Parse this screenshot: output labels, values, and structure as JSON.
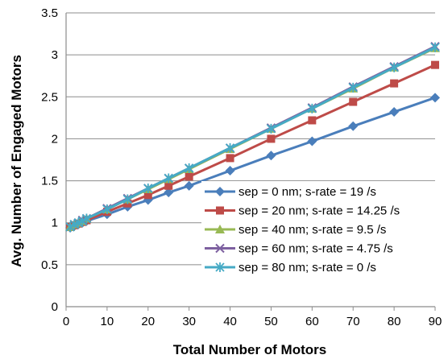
{
  "chart_data": {
    "type": "line",
    "title": "",
    "xlabel": "Total Number of Motors",
    "ylabel": "Avg. Number of Engaged Motors",
    "xlim": [
      0,
      90
    ],
    "ylim": [
      0,
      3.5
    ],
    "xticks": [
      "0",
      "10",
      "20",
      "30",
      "40",
      "50",
      "60",
      "70",
      "80",
      "90"
    ],
    "yticks": [
      "0",
      "0.5",
      "1",
      "1.5",
      "2",
      "2.5",
      "3",
      "3.5"
    ],
    "grid": "horizontal",
    "legend_position": "bottom-right",
    "x": [
      1,
      2,
      3,
      4,
      5,
      10,
      15,
      20,
      25,
      30,
      40,
      50,
      60,
      70,
      80,
      90
    ],
    "series": [
      {
        "name": "sep = 0 nm; s-rate = 19 /s",
        "color": "#4a7ebb",
        "marker": "diamond",
        "values": [
          0.94,
          0.96,
          0.98,
          1.0,
          1.02,
          1.1,
          1.19,
          1.27,
          1.36,
          1.44,
          1.62,
          1.8,
          1.97,
          2.15,
          2.32,
          2.49
        ]
      },
      {
        "name": "sep = 20 nm; s-rate = 14.25 /s",
        "color": "#be4b48",
        "marker": "square",
        "values": [
          0.95,
          0.97,
          0.99,
          1.01,
          1.03,
          1.13,
          1.23,
          1.33,
          1.44,
          1.55,
          1.77,
          2.0,
          2.22,
          2.44,
          2.66,
          2.88
        ]
      },
      {
        "name": "sep = 40 nm; s-rate = 9.5 /s",
        "color": "#98b954",
        "marker": "triangle",
        "values": [
          0.95,
          0.98,
          1.0,
          1.02,
          1.05,
          1.16,
          1.28,
          1.4,
          1.52,
          1.64,
          1.88,
          2.12,
          2.36,
          2.6,
          2.85,
          3.08
        ]
      },
      {
        "name": "sep = 60 nm; s-rate = 4.75 /s",
        "color": "#7d60a0",
        "marker": "x",
        "values": [
          0.95,
          0.98,
          1.0,
          1.03,
          1.05,
          1.17,
          1.29,
          1.41,
          1.53,
          1.65,
          1.89,
          2.13,
          2.37,
          2.62,
          2.86,
          3.1
        ]
      },
      {
        "name": "sep = 80 nm; s-rate = 0 /s",
        "color": "#46aac5",
        "marker": "star",
        "values": [
          0.95,
          0.98,
          1.0,
          1.02,
          1.05,
          1.16,
          1.28,
          1.41,
          1.53,
          1.65,
          1.89,
          2.12,
          2.36,
          2.61,
          2.85,
          3.09
        ]
      }
    ]
  }
}
